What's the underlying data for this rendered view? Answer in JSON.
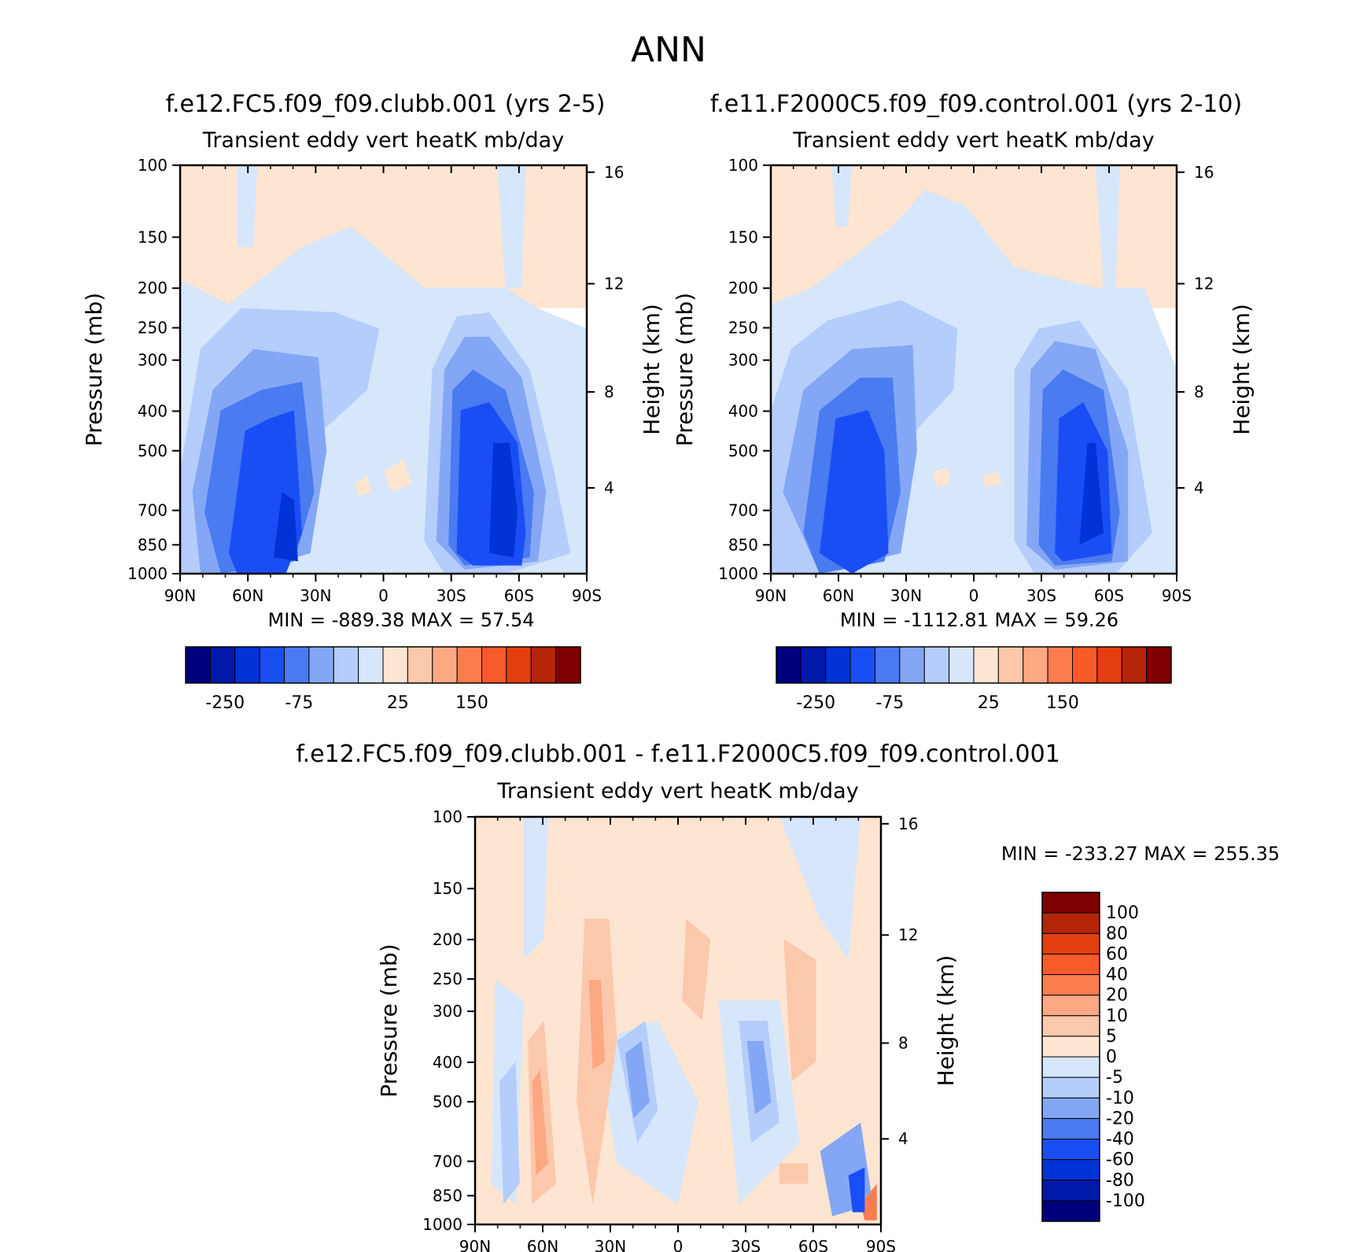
{
  "figure_title": "ANN",
  "chart_data": [
    {
      "type": "contour",
      "title": "f.e12.FC5.f09_f09.clubb.001 (yrs 2-5)",
      "subtitle": "Transient eddy vert heatK mb/day",
      "ylabel": "Pressure (mb)",
      "ylabel_right": "Height (km)",
      "x_ticks": [
        "90N",
        "60N",
        "30N",
        "0",
        "30S",
        "60S",
        "90S"
      ],
      "y_ticks": [
        100,
        150,
        200,
        250,
        300,
        400,
        500,
        700,
        850,
        1000
      ],
      "y_right_ticks": [
        16,
        12,
        8,
        4
      ],
      "ylim": [
        1000,
        100
      ],
      "min_label": "MIN",
      "min_value": "-889.38",
      "max_label": "MAX",
      "max_value": "57.54",
      "colorbar_labels": [
        "-250",
        "-75",
        "25",
        "150"
      ]
    },
    {
      "type": "contour",
      "title": "f.e11.F2000C5.f09_f09.control.001 (yrs 2-10)",
      "subtitle": "Transient eddy vert heatK mb/day",
      "ylabel": "Pressure (mb)",
      "ylabel_right": "Height (km)",
      "x_ticks": [
        "90N",
        "60N",
        "30N",
        "0",
        "30S",
        "60S",
        "90S"
      ],
      "y_ticks": [
        100,
        150,
        200,
        250,
        300,
        400,
        500,
        700,
        850,
        1000
      ],
      "y_right_ticks": [
        16,
        12,
        8,
        4
      ],
      "ylim": [
        1000,
        100
      ],
      "min_label": "MIN",
      "min_value": "-1112.81",
      "max_label": "MAX",
      "max_value": "59.26",
      "colorbar_labels": [
        "-250",
        "-75",
        "25",
        "150"
      ]
    },
    {
      "type": "contour",
      "title": "f.e12.FC5.f09_f09.clubb.001 - f.e11.F2000C5.f09_f09.control.001",
      "subtitle": "Transient eddy vert heatK mb/day",
      "ylabel": "Pressure (mb)",
      "ylabel_right": "Height (km)",
      "x_ticks": [
        "90N",
        "60N",
        "30N",
        "0",
        "30S",
        "60S",
        "90S"
      ],
      "y_ticks": [
        100,
        150,
        200,
        250,
        300,
        400,
        500,
        700,
        850,
        1000
      ],
      "y_right_ticks": [
        16,
        12,
        8,
        4
      ],
      "ylim": [
        1000,
        100
      ],
      "min_label": "MIN",
      "min_value": "-233.27",
      "max_label": "MAX",
      "max_value": "255.35",
      "colorbar_labels": [
        "100",
        "80",
        "60",
        "40",
        "20",
        "10",
        "5",
        "0",
        "-5",
        "-10",
        "-20",
        "-40",
        "-60",
        "-80",
        "-100"
      ]
    }
  ],
  "colors": {
    "full_scale": [
      "#00007f",
      "#0019a8",
      "#0033d6",
      "#1a4ef5",
      "#4a7bf0",
      "#84a7f5",
      "#b5cdfa",
      "#d6e6fb",
      "#fde5d2",
      "#fcc8ac",
      "#fca882",
      "#fb7d4f",
      "#f95a2a",
      "#e33f0e",
      "#b52508",
      "#7f0000"
    ],
    "diff_scale": [
      "#00007f",
      "#0019a8",
      "#0033d6",
      "#1a4ef5",
      "#4a7bf0",
      "#84a7f5",
      "#b5cdfa",
      "#d6e6fb",
      "#fde5d2",
      "#fcc8ac",
      "#fca882",
      "#fb7d4f",
      "#f95a2a",
      "#e33f0e",
      "#b52508",
      "#7f0000"
    ]
  }
}
